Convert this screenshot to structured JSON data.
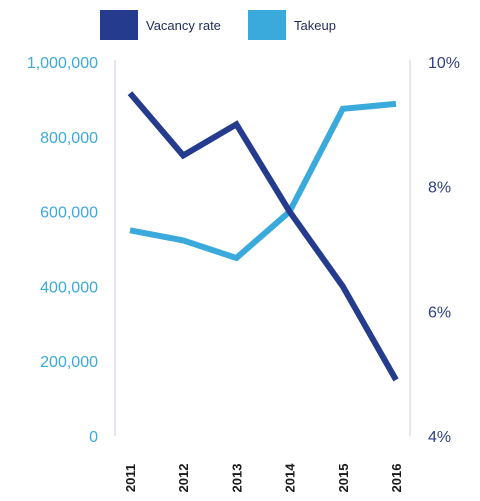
{
  "colors": {
    "vacancy": "#243B8E",
    "takeup": "#3AAADD",
    "axis_right_text": "#2E3F7E",
    "axis_left_text": "#3AAADD",
    "axis_line": "#c8d2de"
  },
  "chart_data": {
    "type": "line",
    "title": "",
    "xlabel": "",
    "ylabel": "",
    "categories": [
      "2011",
      "2012",
      "2013",
      "2014",
      "2015",
      "2016"
    ],
    "legend": {
      "placement": "top"
    },
    "y_left": {
      "range": [
        0,
        1000000
      ],
      "ticks": [
        0,
        200000,
        400000,
        600000,
        800000,
        1000000
      ],
      "tick_labels": [
        "0",
        "200,000",
        "400,000",
        "600,000",
        "800,000",
        "1,000,000"
      ]
    },
    "y_right": {
      "range": [
        4,
        10
      ],
      "ticks": [
        4,
        6,
        8,
        10
      ],
      "tick_labels": [
        "4%",
        "6%",
        "8%",
        "10%"
      ]
    },
    "series": [
      {
        "name": "Vacancy rate",
        "axis": "right",
        "values": [
          9.5,
          8.5,
          9.0,
          7.6,
          6.4,
          4.9
        ]
      },
      {
        "name": "Takeup",
        "axis": "left",
        "values": [
          550000,
          523000,
          476000,
          600000,
          875000,
          888000
        ]
      }
    ]
  }
}
